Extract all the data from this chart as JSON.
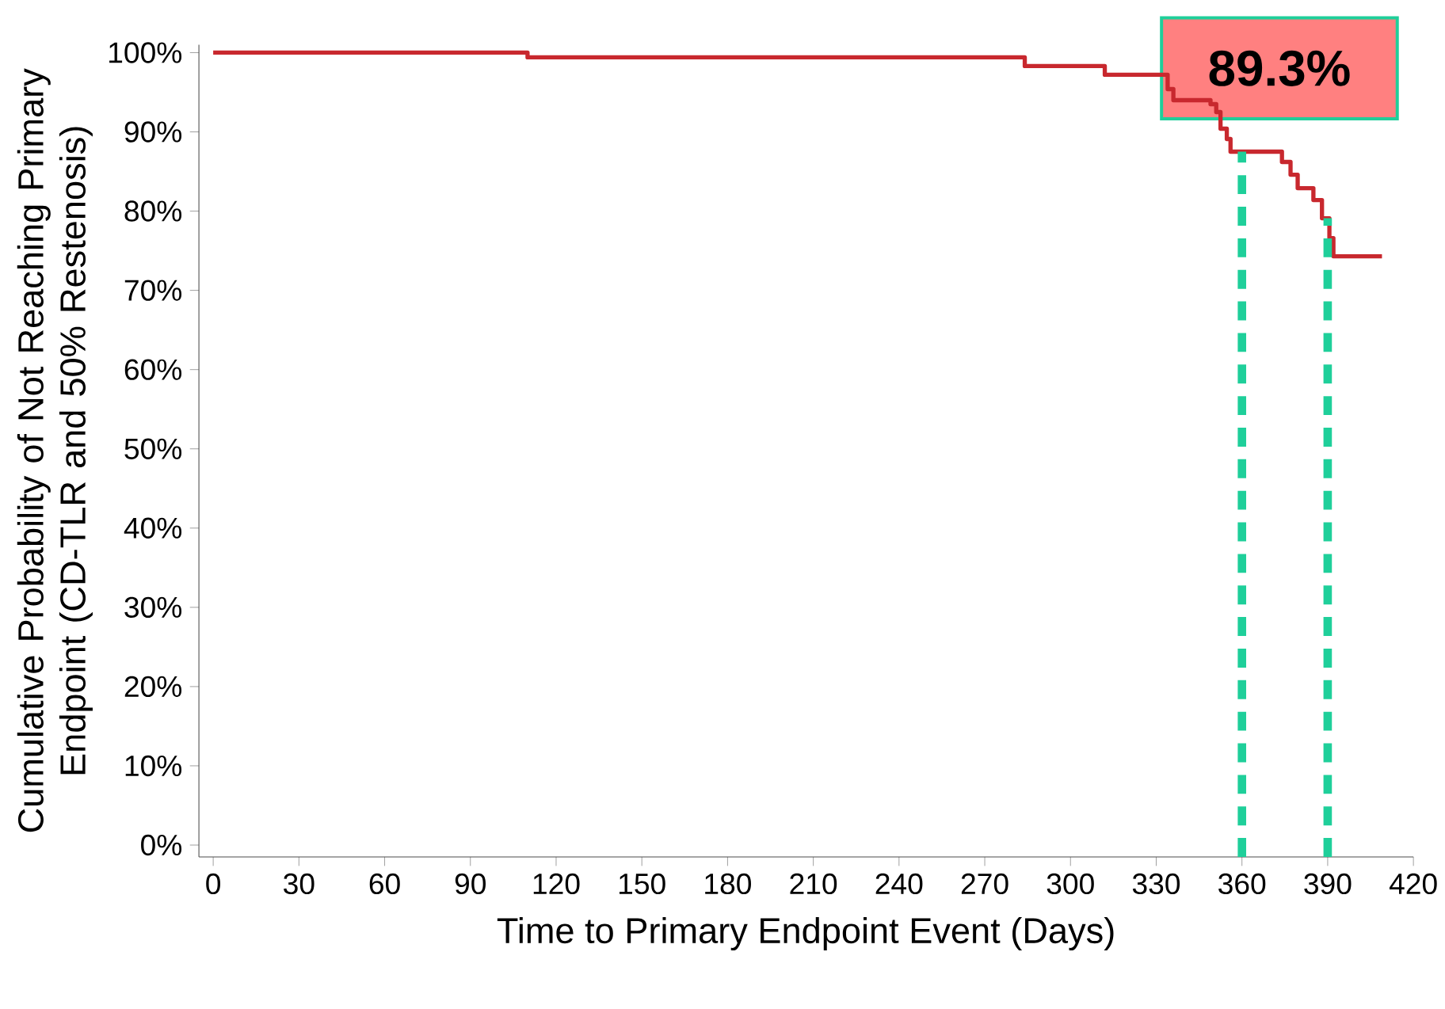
{
  "chart_data": {
    "type": "step",
    "xlabel": "Time to Primary Endpoint Event (Days)",
    "ylabel": "Cumulative Probability of Not Reaching Primary Endpoint (CD-TLR and 50% Restenosis)",
    "x": [
      0,
      110,
      284,
      312,
      334,
      336,
      349,
      351,
      352.5,
      354.7,
      356,
      374,
      377,
      379.5,
      385,
      388,
      390.6,
      392,
      409
    ],
    "series": [
      {
        "color": "#c8282e",
        "values": [
          100,
          99.4,
          98.3,
          97.2,
          95.4,
          94.0,
          93.5,
          92.5,
          90.4,
          89.1,
          87.5,
          86.2,
          84.6,
          82.9,
          81.4,
          79.1,
          76.6,
          74.3,
          74.3
        ]
      }
    ],
    "xlim": [
      -5,
      420
    ],
    "ylim": [
      -1.5,
      101
    ],
    "xticks": [
      0,
      30,
      60,
      90,
      120,
      150,
      180,
      210,
      240,
      270,
      300,
      330,
      360,
      390,
      420
    ],
    "yticks": [
      {
        "value": 0,
        "label": "0%"
      },
      {
        "value": 10,
        "label": "10%"
      },
      {
        "value": 20,
        "label": "20%"
      },
      {
        "value": 30,
        "label": "30%"
      },
      {
        "value": 40,
        "label": "40%"
      },
      {
        "value": 50,
        "label": "50%"
      },
      {
        "value": 60,
        "label": "60%"
      },
      {
        "value": 70,
        "label": "70%"
      },
      {
        "value": 80,
        "label": "80%"
      },
      {
        "value": 90,
        "label": "90%"
      },
      {
        "value": 100,
        "label": "100%"
      }
    ],
    "ref_lines": [
      {
        "axis": "x",
        "value": 360,
        "color": "#1fcf9a",
        "line_style": "dashed"
      },
      {
        "axis": "x",
        "value": 390,
        "color": "#1fcf9a",
        "line_style": "dashed"
      }
    ],
    "annotations": [
      "89.3%"
    ]
  }
}
